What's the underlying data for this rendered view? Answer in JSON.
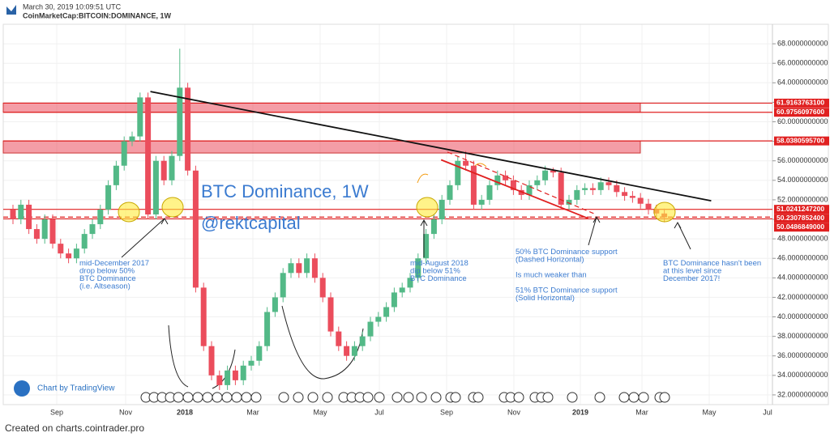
{
  "header": {
    "date": "March 30, 2019 10:09:51 UTC",
    "symbol": "CoinMarketCap:BITCOIN:DOMINANCE, 1W"
  },
  "footer": "Created on charts.cointrader.pro",
  "chart_data": {
    "type": "candlestick",
    "title": "BTC Dominance, 1W",
    "subtitle": "@rektcapital",
    "credit": "Chart by TradingView",
    "colors": {
      "up": "#53b987",
      "down": "#eb4d5c"
    },
    "xticks": [
      "Sep",
      "Nov",
      "2018",
      "Mar",
      "May",
      "Jul",
      "Sep",
      "Nov",
      "2019",
      "Mar",
      "May",
      "Jul"
    ],
    "open": [
      51,
      50,
      51.5,
      49,
      48,
      50,
      47.5,
      46.5,
      46,
      47,
      48.5,
      49.5,
      51,
      53.5,
      55.5,
      58,
      58.5,
      62.5,
      50.5,
      56,
      54,
      56.5,
      63.5,
      55,
      43,
      37,
      34,
      33,
      34.5,
      33.5,
      35,
      35.5,
      37,
      40.5,
      42,
      44.5,
      45.5,
      44.5,
      46,
      44,
      42,
      38.5,
      37,
      36,
      37,
      38,
      39.5,
      40,
      41,
      42.5,
      43,
      44,
      46,
      48.5,
      50,
      52,
      53.5,
      56,
      55.5,
      51.5,
      52,
      53.5,
      54.5,
      54,
      53,
      52.5,
      53.5,
      54,
      55,
      54.8,
      51.5,
      52,
      53,
      53.2,
      53,
      53.8,
      53.5,
      52.8,
      52.4,
      52.2,
      51.6,
      51,
      50.6
    ],
    "high": [
      51.5,
      52,
      52,
      49.5,
      50.5,
      50.5,
      48,
      47,
      47.5,
      49,
      50,
      51.5,
      54,
      56,
      58.5,
      59,
      63,
      63,
      56.5,
      56.5,
      57,
      67.5,
      64,
      55.5,
      43.5,
      37.5,
      34.5,
      35,
      35,
      35.5,
      36,
      37.5,
      41,
      42.5,
      45,
      46,
      46,
      46.5,
      46.5,
      44.5,
      42.5,
      39,
      37.5,
      37.5,
      38.5,
      40,
      40.5,
      41.5,
      43,
      43.5,
      44.5,
      46.5,
      49,
      50.5,
      52.5,
      54,
      56.5,
      57,
      56,
      52.5,
      54,
      55,
      55,
      54.5,
      53.5,
      54,
      54.5,
      55.5,
      55.3,
      55.3,
      52.5,
      53.5,
      53.7,
      53.7,
      54.3,
      54.3,
      54,
      53.3,
      52.9,
      52.7,
      52.1,
      51.5,
      51.1
    ],
    "low": [
      49.5,
      49.5,
      48.5,
      47.5,
      47.5,
      47,
      46,
      45.5,
      45.5,
      46.5,
      48,
      49,
      50.5,
      53,
      55,
      57.5,
      58,
      50,
      50,
      53.5,
      53.5,
      56,
      54.5,
      42.5,
      36.5,
      33.5,
      32.5,
      32.5,
      33,
      33,
      34.5,
      35,
      36.5,
      40,
      41.5,
      44,
      44,
      44,
      43.5,
      41.5,
      38,
      36.5,
      35.5,
      35.5,
      36.5,
      37.5,
      39,
      39.5,
      40.5,
      42,
      42.5,
      43.5,
      45.5,
      48,
      49.5,
      51.5,
      53,
      55,
      51,
      51,
      51.5,
      53,
      53.5,
      52.5,
      52,
      52,
      53,
      53.5,
      54.3,
      51,
      51,
      51.5,
      52.5,
      52.5,
      52.5,
      53,
      52.3,
      51.9,
      51.7,
      51.1,
      50.5,
      50.1,
      49.7
    ],
    "close": [
      50,
      51.5,
      49,
      48,
      50,
      47.5,
      46.5,
      46,
      47,
      48.5,
      49.5,
      51,
      53.5,
      55.5,
      58,
      58.5,
      62.5,
      50.5,
      56,
      54,
      56.5,
      63.5,
      55,
      43,
      37,
      34,
      33,
      34.5,
      33.5,
      35,
      35.5,
      37,
      40.5,
      42,
      44.5,
      45.5,
      44.5,
      46,
      44,
      42,
      38.5,
      37,
      36,
      37,
      38,
      39.5,
      40,
      41,
      42.5,
      43,
      44,
      46,
      48.5,
      50,
      52,
      53.5,
      56,
      55.5,
      51.5,
      52,
      53.5,
      54.5,
      54,
      53,
      52.5,
      53.5,
      54,
      55,
      54.8,
      51.5,
      52,
      53,
      53.2,
      53,
      53.8,
      53.5,
      52.8,
      52.4,
      52.2,
      51.6,
      51,
      50.6,
      50.2
    ],
    "ylim": [
      31,
      70
    ],
    "yticks": [
      {
        "value": 32,
        "label": "32.0000000000"
      },
      {
        "value": 34,
        "label": "34.0000000000"
      },
      {
        "value": 36,
        "label": "36.0000000000"
      },
      {
        "value": 38,
        "label": "38.0000000000"
      },
      {
        "value": 40,
        "label": "40.0000000000"
      },
      {
        "value": 42,
        "label": "42.0000000000"
      },
      {
        "value": 44,
        "label": "44.0000000000"
      },
      {
        "value": 46,
        "label": "46.0000000000"
      },
      {
        "value": 48,
        "label": "48.0000000000"
      },
      {
        "value": 50,
        "label": "50.0000000000"
      },
      {
        "value": 52,
        "label": "52.0000000000"
      },
      {
        "value": 54,
        "label": "54.0000000000"
      },
      {
        "value": 56,
        "label": "56.0000000000"
      },
      {
        "value": 58,
        "label": "58.0000000000"
      },
      {
        "value": 60,
        "label": "60.0000000000"
      },
      {
        "value": 62,
        "label": "62.0000000000"
      },
      {
        "value": 64,
        "label": "64.0000000000"
      },
      {
        "value": 66,
        "label": "66.0000000000"
      },
      {
        "value": 68,
        "label": "68.0000000000"
      }
    ],
    "levels": [
      {
        "value": 61.91637631,
        "label": "61.9163763100"
      },
      {
        "value": 60.97560976,
        "label": "60.9756097600"
      },
      {
        "value": 58.03805957,
        "label": "58.0380595700"
      },
      {
        "value": 51.02412472,
        "label": "51.0241247200"
      },
      {
        "value": 50.23078524,
        "label": "50.2307852400",
        "dashed": true
      },
      {
        "value": 50.0486849,
        "label": "50.0486849000"
      }
    ],
    "zones": [
      [
        60.97560976,
        61.91637631
      ],
      [
        56.8,
        58.03805957
      ]
    ],
    "trendlines": [
      {
        "color": "#111111",
        "points": [
          [
            17.3,
            63.1
          ],
          [
            87.9,
            51.9
          ]
        ]
      },
      {
        "color": "#e02020",
        "points": [
          [
            53.9,
            56.1
          ],
          [
            72.4,
            50.1
          ]
        ]
      },
      {
        "color": "#e02020",
        "dashed": true,
        "points": [
          [
            54.7,
            56.9
          ],
          [
            73.1,
            50.6
          ]
        ]
      }
    ],
    "grid": true,
    "annotations": [
      [
        "mid-December 2017",
        "drop below 50%",
        "BTC Dominance",
        "(i.e. Altseason)"
      ],
      [
        "mid-August 2018",
        "dip below 51%",
        "BTC Dominance"
      ],
      [
        "50% BTC Dominance support",
        "(Dashed Horizontal)",
        "",
        "Is much weaker than",
        "",
        "51% BTC Dominance support",
        "(Solid Horizontal)"
      ],
      [
        "BTC Dominance hasn't been",
        "at this level since",
        "December 2017!"
      ]
    ]
  }
}
